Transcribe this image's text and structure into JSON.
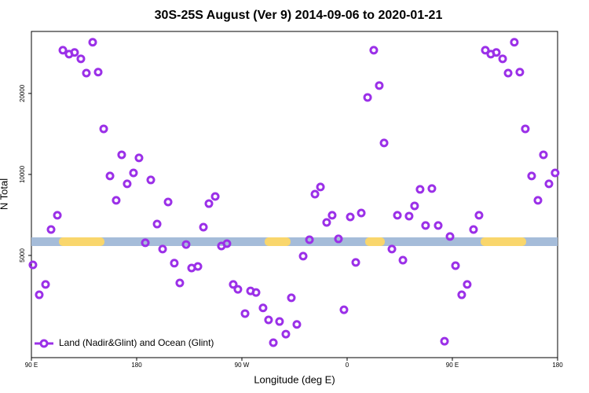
{
  "chart_data": {
    "type": "scatter",
    "title": "30S-25S August (Ver 9)   2014-09-06 to 2020-01-21",
    "xlabel": "Longitude (deg E)",
    "ylabel": "N Total",
    "log_y": true,
    "legend_position": "lower left",
    "xlim": [
      90,
      540
    ],
    "ylim": [
      2085,
      34000
    ],
    "xticks": [
      {
        "value": 90,
        "label": "90 E"
      },
      180,
      {
        "value": 270,
        "label": "90 W"
      },
      {
        "value": 360,
        "label": "0"
      },
      {
        "value": 450,
        "label": "90 E"
      },
      {
        "value": 540,
        "label": "180"
      }
    ],
    "yticks": [
      5000,
      10000,
      20000
    ],
    "series": [
      {
        "name": "Land (Nadir&Glint) and Ocean (Glint)",
        "color": "#9b30e8",
        "x": [
          91.3,
          96.7,
          102.1,
          106.8,
          112.2,
          116.9,
          122.2,
          126.9,
          132.3,
          137.0,
          142.4,
          147.1,
          151.8,
          157.2,
          162.5,
          167.2,
          171.9,
          177.3,
          182.0,
          187.4,
          192.1,
          197.5,
          202.2,
          206.9,
          212.2,
          216.9,
          222.3,
          227.0,
          232.4,
          237.1,
          241.8,
          247.2,
          252.5,
          257.2,
          262.6,
          266.6,
          272.7,
          277.4,
          282.1,
          288.1,
          292.8,
          296.9,
          302.2,
          307.6,
          312.3,
          317.0,
          322.4,
          327.8,
          332.5,
          337.2,
          342.5,
          347.2,
          352.6,
          357.3,
          362.7,
          367.4,
          372.1,
          377.5,
          382.8,
          387.5,
          391.6,
          398.3,
          403.0,
          407.7,
          413.0,
          417.7,
          422.4,
          427.1,
          432.5,
          437.9,
          443.3,
          448.0,
          452.7,
          458.0,
          462.7,
          468.1,
          472.8,
          478.2,
          482.9,
          487.6,
          493.0,
          497.7,
          503.0,
          507.7,
          512.4,
          517.8,
          523.2,
          527.9,
          532.6,
          537.9
        ],
        "values": [
          4610,
          3570,
          3900,
          6240,
          7050,
          28950,
          28000,
          28400,
          26900,
          23800,
          31000,
          24000,
          14770,
          9870,
          8010,
          11830,
          9230,
          10130,
          11520,
          5570,
          9540,
          6540,
          5280,
          7900,
          4680,
          3950,
          5490,
          4490,
          4550,
          6370,
          7790,
          8280,
          5420,
          5530,
          3900,
          3740,
          3040,
          3690,
          3640,
          3190,
          2880,
          2370,
          2840,
          2550,
          3480,
          2770,
          4970,
          5720,
          8450,
          8980,
          6630,
          7050,
          5760,
          3140,
          6950,
          4710,
          7190,
          19330,
          28950,
          21400,
          13090,
          5280,
          7050,
          4800,
          7000,
          7640,
          8800,
          6460,
          8860,
          6460,
          2400,
          5880,
          4580,
          3570,
          3900,
          6240,
          7050,
          28950,
          28000,
          28400,
          26900,
          23800,
          31000,
          24000,
          14770,
          9870,
          8010,
          11830,
          9230,
          10130
        ]
      }
    ]
  }
}
